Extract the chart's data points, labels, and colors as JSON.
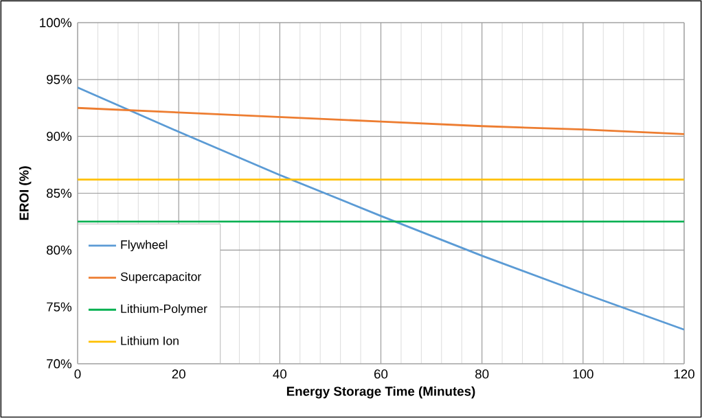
{
  "chart_data": {
    "type": "line",
    "xlabel": "Energy Storage Time (Minutes)",
    "ylabel": "EROI (%)",
    "x": [
      0,
      20,
      40,
      60,
      80,
      100,
      120
    ],
    "xlim": [
      0,
      120
    ],
    "xticks": [
      0,
      20,
      40,
      60,
      80,
      100,
      120
    ],
    "ylim": [
      70,
      100
    ],
    "yticks": [
      {
        "value": 70,
        "label": "70%"
      },
      {
        "value": 75,
        "label": "75%"
      },
      {
        "value": 80,
        "label": "80%"
      },
      {
        "value": 85,
        "label": "85%"
      },
      {
        "value": 90,
        "label": "90%"
      },
      {
        "value": 95,
        "label": "95%"
      },
      {
        "value": 100,
        "label": "100%"
      }
    ],
    "grid": true,
    "legend": "bottom left",
    "marker": "none",
    "line_style": "solid",
    "series": [
      {
        "name": "Flywheel",
        "color": "#5b9bd5",
        "values": [
          94.3,
          90.4,
          86.6,
          83.0,
          79.5,
          76.2,
          73.0
        ]
      },
      {
        "name": "Supercapacitor",
        "color": "#ed7d31",
        "values": [
          92.5,
          92.1,
          91.7,
          91.3,
          90.9,
          90.6,
          90.2
        ]
      },
      {
        "name": "Lithium-Polymer",
        "color": "#00b050",
        "values": [
          82.5,
          82.5,
          82.5,
          82.5,
          82.5,
          82.5,
          82.5
        ]
      },
      {
        "name": "Lithium Ion",
        "color": "#ffc000",
        "values": [
          86.2,
          86.2,
          86.2,
          86.2,
          86.2,
          86.2,
          86.2
        ]
      }
    ]
  }
}
